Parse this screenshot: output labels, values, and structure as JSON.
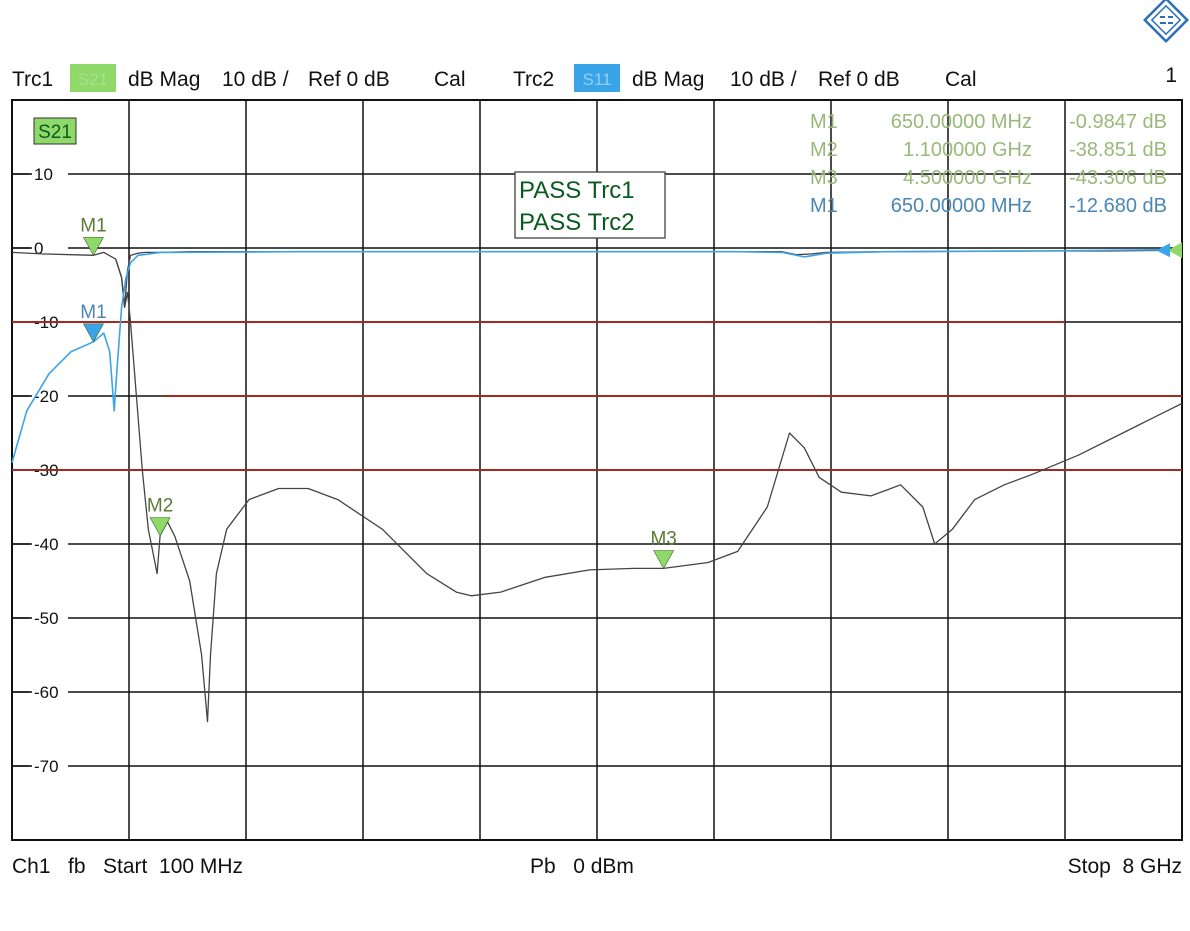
{
  "colors": {
    "trc1": "#8ed96a",
    "trc1_text": "#9ab87a",
    "trc2": "#3aa4e8",
    "trc2_text": "#4b86b4",
    "trace_line": "#444444",
    "limit_line": "#a12a22",
    "pass_text": "#0b5a1e"
  },
  "header": {
    "trc1": {
      "name": "Trc1",
      "badge": "S21",
      "format": "dB Mag",
      "scale": "10 dB /",
      "ref": "Ref 0 dB",
      "cal": "Cal"
    },
    "trc2": {
      "name": "Trc2",
      "badge": "S11",
      "format": "dB Mag",
      "scale": "10 dB /",
      "ref": "Ref 0 dB",
      "cal": "Cal"
    },
    "channel_number": "1"
  },
  "footer": {
    "channel": "Ch1",
    "mode": "fb",
    "start": "Start  100 MHz",
    "power": "Pb   0 dBm",
    "stop": "Stop  8 GHz"
  },
  "logo_icon": "rohde-schwarz-logo-icon",
  "chart_data": {
    "type": "line",
    "trace_label": "S21",
    "xlim_mhz": [
      100,
      8000
    ],
    "ylim_db": [
      -80,
      20
    ],
    "x_divisions": 10,
    "y_ticks": [
      10,
      0,
      -10,
      -20,
      -30,
      -40,
      -50,
      -60,
      -70
    ],
    "y_tick_labels": [
      "10",
      "0",
      "-10",
      "-20",
      "-30",
      "-40",
      "-50",
      "-60",
      "-70"
    ],
    "grid": true,
    "pass_labels": [
      "PASS Trc1",
      "PASS Trc2"
    ],
    "marker_table": [
      {
        "name": "M1",
        "freq": "650.00000 MHz",
        "value": "-0.9847 dB",
        "trace": "trc1"
      },
      {
        "name": "M2",
        "freq": "1.100000 GHz",
        "value": "-38.851 dB",
        "trace": "trc1"
      },
      {
        "name": "M3",
        "freq": "4.500000 GHz",
        "value": "-43.306 dB",
        "trace": "trc1"
      },
      {
        "name": "M1",
        "freq": "650.00000 MHz",
        "value": "-12.680 dB",
        "trace": "trc2"
      }
    ],
    "markers": [
      {
        "name": "M1",
        "x": 650,
        "y": -0.98,
        "trace": "trc1"
      },
      {
        "name": "M2",
        "x": 1100,
        "y": -38.85,
        "trace": "trc1"
      },
      {
        "name": "M3",
        "x": 4500,
        "y": -43.31,
        "trace": "trc1"
      },
      {
        "name": "M1",
        "x": 650,
        "y": -12.68,
        "trace": "trc2"
      }
    ],
    "limit_lines": [
      {
        "trace": "trc2",
        "points": [
          [
            100,
            -10
          ],
          [
            7210,
            -10
          ]
        ]
      },
      {
        "trace": "trc2",
        "points": [
          [
            1120,
            -20
          ],
          [
            8000,
            -20
          ]
        ]
      },
      {
        "trace": "trc1",
        "points": [
          [
            100,
            -30
          ],
          [
            8000,
            -30
          ]
        ]
      }
    ],
    "series": [
      {
        "name": "Trc1",
        "color": "#444444",
        "points": [
          [
            100,
            -0.6
          ],
          [
            300,
            -0.8
          ],
          [
            500,
            -0.9
          ],
          [
            650,
            -0.98
          ],
          [
            720,
            -0.6
          ],
          [
            800,
            -1.5
          ],
          [
            840,
            -4
          ],
          [
            860,
            -8
          ],
          [
            880,
            -3
          ],
          [
            900,
            -1
          ],
          [
            950,
            -0.7
          ],
          [
            1000,
            -0.6
          ],
          [
            1100,
            -0.6
          ],
          [
            1300,
            -0.5
          ],
          [
            2000,
            -0.5
          ],
          [
            3000,
            -0.5
          ],
          [
            4000,
            -0.5
          ],
          [
            5000,
            -0.5
          ],
          [
            5300,
            -0.5
          ],
          [
            5400,
            -0.9
          ],
          [
            5500,
            -0.8
          ],
          [
            5600,
            -0.6
          ],
          [
            6000,
            -0.5
          ],
          [
            7000,
            -0.4
          ],
          [
            7500,
            -0.4
          ],
          [
            8000,
            -0.3
          ]
        ]
      },
      {
        "name": "Trc1 stopband",
        "color": "#444444",
        "points": [
          [
            800,
            -1.5
          ],
          [
            840,
            -4
          ],
          [
            860,
            -8
          ],
          [
            880,
            -6
          ],
          [
            900,
            -10
          ],
          [
            940,
            -20
          ],
          [
            980,
            -30
          ],
          [
            1020,
            -38
          ],
          [
            1060,
            -42
          ],
          [
            1080,
            -44
          ],
          [
            1100,
            -38.85
          ],
          [
            1150,
            -37
          ],
          [
            1200,
            -39
          ],
          [
            1300,
            -45
          ],
          [
            1380,
            -55
          ],
          [
            1420,
            -64
          ],
          [
            1440,
            -55
          ],
          [
            1480,
            -44
          ],
          [
            1550,
            -38
          ],
          [
            1700,
            -34
          ],
          [
            1900,
            -32.5
          ],
          [
            2100,
            -32.5
          ],
          [
            2300,
            -34
          ],
          [
            2600,
            -38
          ],
          [
            2900,
            -44
          ],
          [
            3100,
            -46.5
          ],
          [
            3200,
            -47
          ],
          [
            3400,
            -46.5
          ],
          [
            3700,
            -44.5
          ],
          [
            4000,
            -43.5
          ],
          [
            4300,
            -43.3
          ],
          [
            4500,
            -43.3
          ],
          [
            4800,
            -42.5
          ],
          [
            5000,
            -41
          ],
          [
            5200,
            -35
          ],
          [
            5350,
            -25
          ],
          [
            5450,
            -27
          ],
          [
            5550,
            -31
          ],
          [
            5700,
            -33
          ],
          [
            5900,
            -33.5
          ],
          [
            6100,
            -32
          ],
          [
            6250,
            -35
          ],
          [
            6330,
            -40
          ],
          [
            6450,
            -38
          ],
          [
            6600,
            -34
          ],
          [
            6800,
            -32
          ],
          [
            7000,
            -30.5
          ],
          [
            7300,
            -28
          ],
          [
            7600,
            -25
          ],
          [
            7800,
            -23
          ],
          [
            8000,
            -21
          ]
        ]
      },
      {
        "name": "Trc2",
        "color": "#3aa4e8",
        "points": [
          [
            100,
            -29
          ],
          [
            200,
            -22
          ],
          [
            350,
            -17
          ],
          [
            500,
            -14
          ],
          [
            650,
            -12.68
          ],
          [
            720,
            -11.5
          ],
          [
            760,
            -14
          ],
          [
            790,
            -22
          ],
          [
            810,
            -16
          ],
          [
            840,
            -8
          ],
          [
            870,
            -4
          ],
          [
            900,
            -2
          ],
          [
            950,
            -1
          ],
          [
            1100,
            -0.6
          ],
          [
            2000,
            -0.5
          ],
          [
            3000,
            -0.5
          ],
          [
            4000,
            -0.5
          ],
          [
            5000,
            -0.5
          ],
          [
            5300,
            -0.6
          ],
          [
            5450,
            -1.2
          ],
          [
            5600,
            -0.7
          ],
          [
            6000,
            -0.5
          ],
          [
            7000,
            -0.4
          ],
          [
            8000,
            -0.2
          ]
        ]
      }
    ]
  }
}
